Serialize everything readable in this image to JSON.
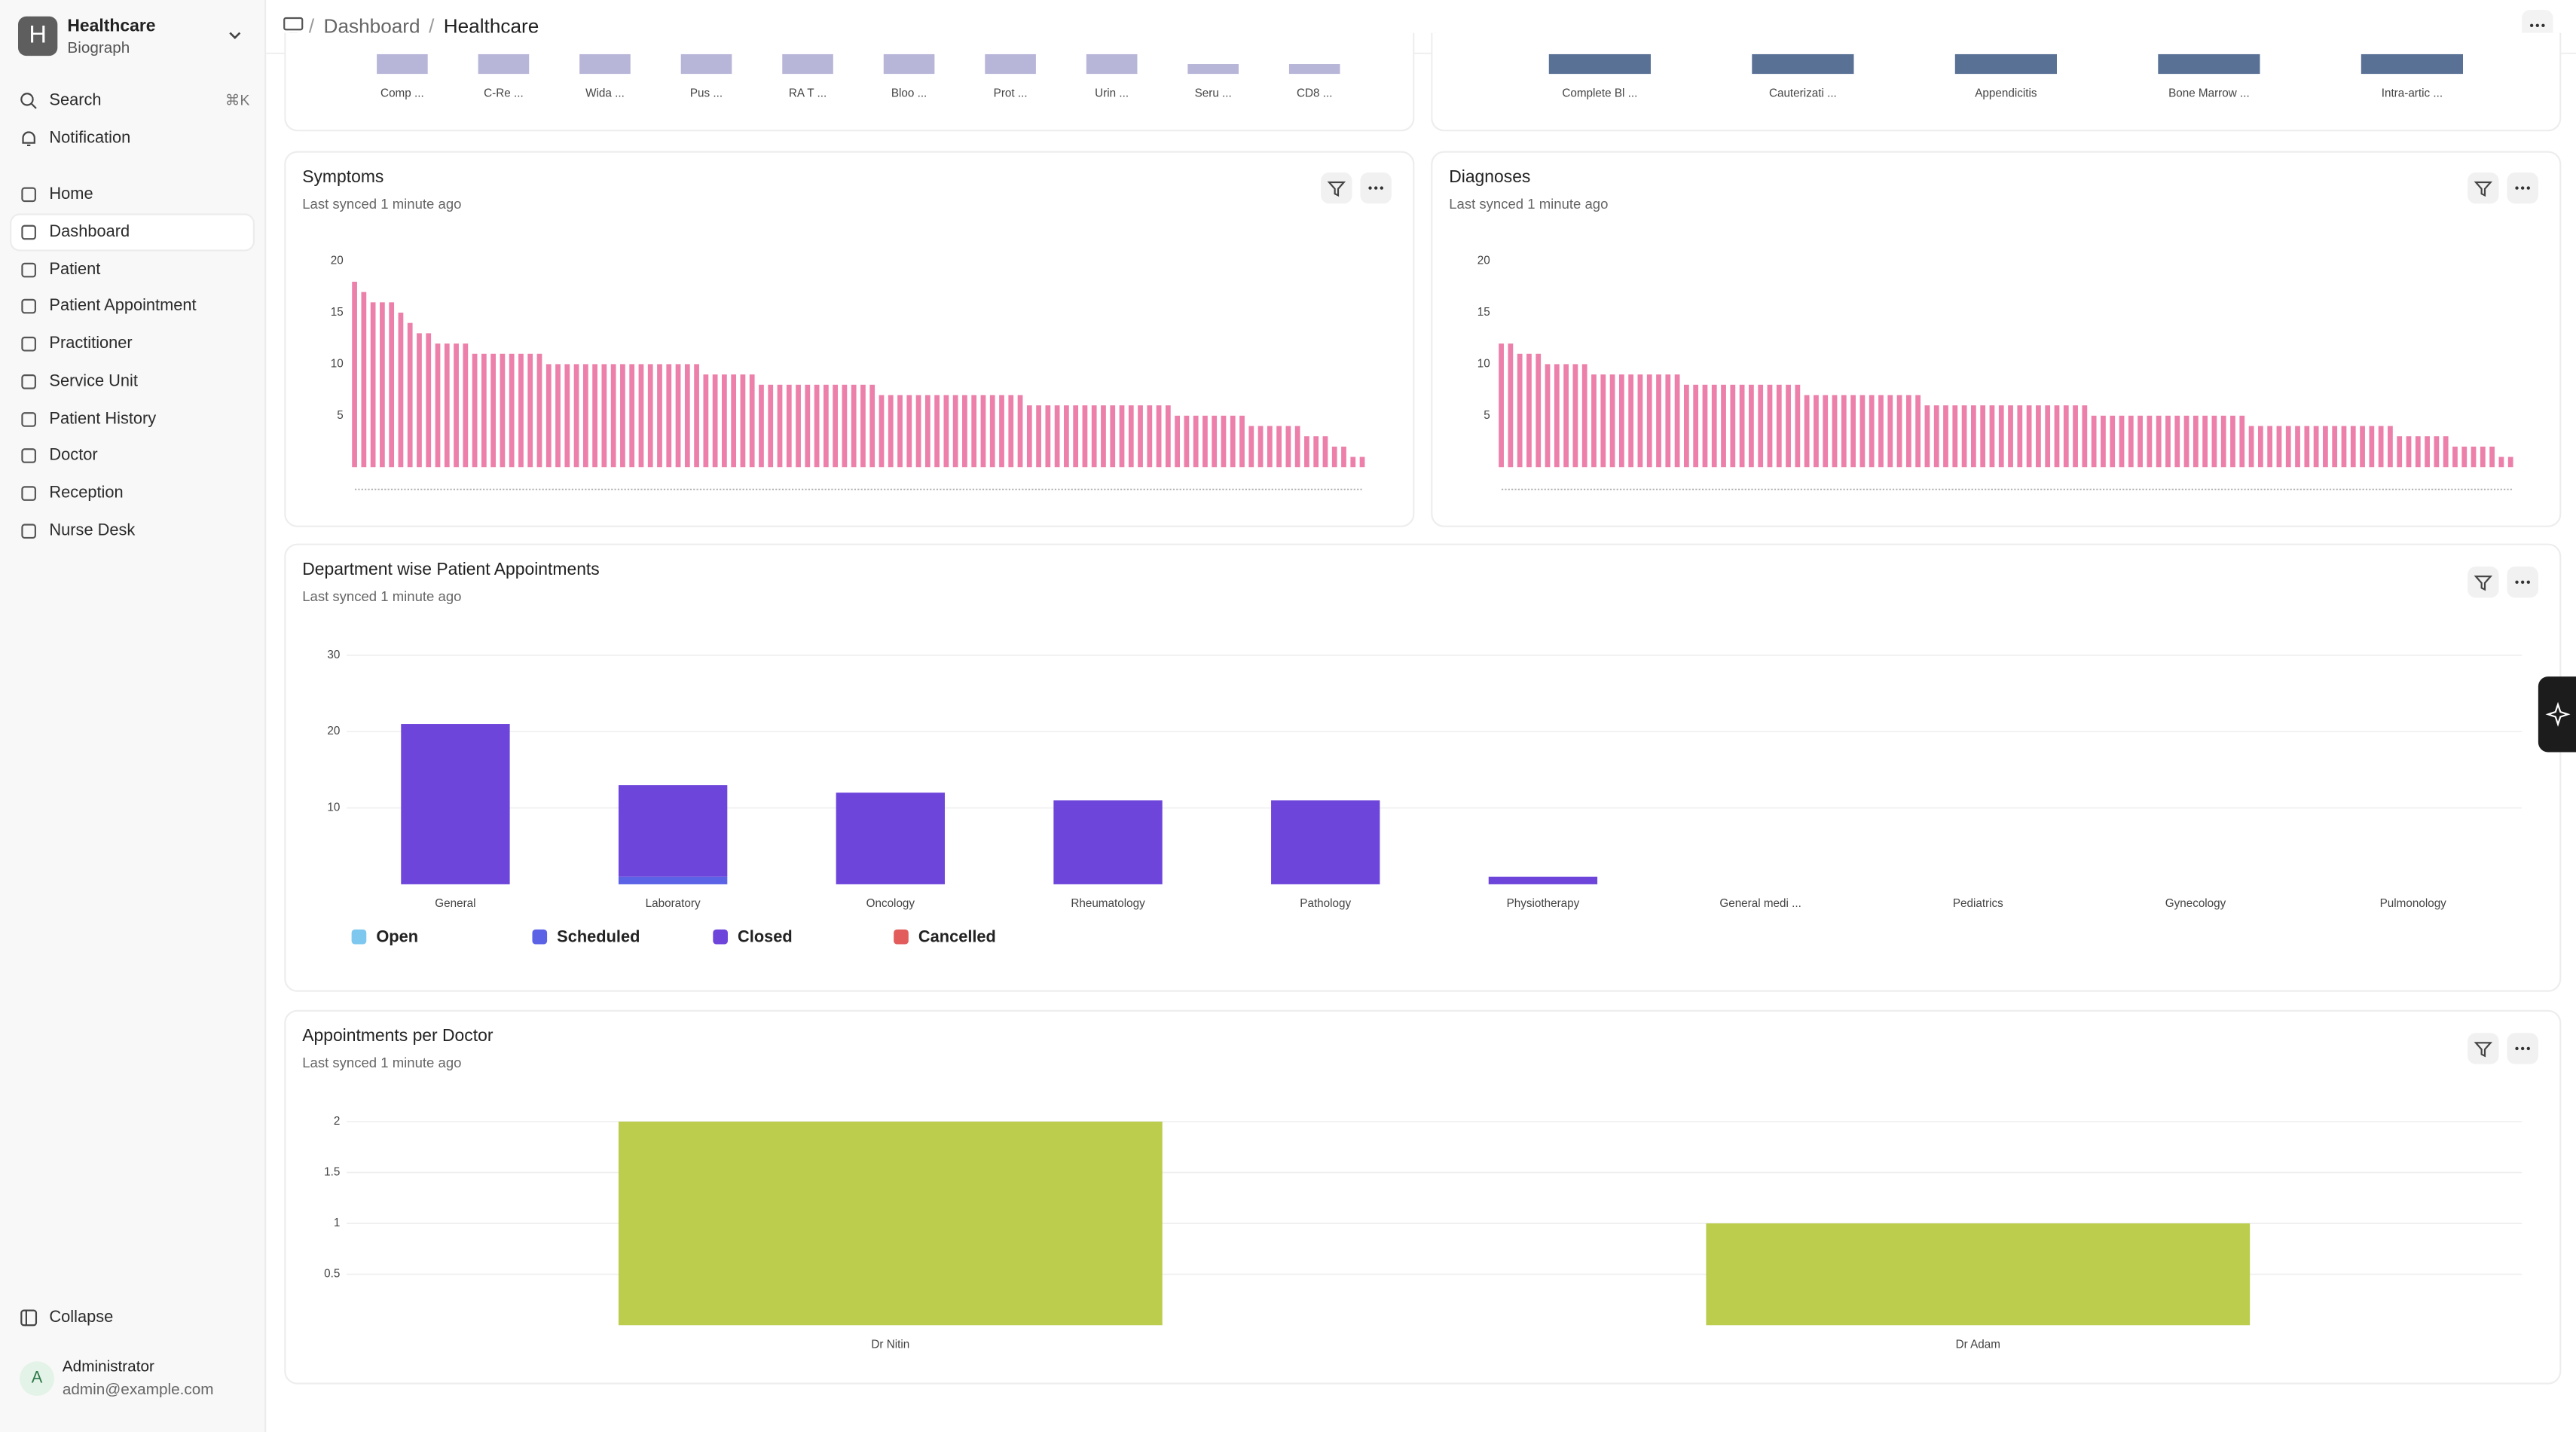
{
  "sidebar": {
    "workspace": {
      "initial": "H",
      "name": "Healthcare",
      "subtitle": "Biograph"
    },
    "search": "Search",
    "shortcut": "⌘K",
    "notification": "Notification",
    "nav": [
      "Home",
      "Dashboard",
      "Patient",
      "Patient Appointment",
      "Practitioner",
      "Service Unit",
      "Patient History",
      "Doctor",
      "Reception",
      "Nurse Desk"
    ],
    "collapse": "Collapse",
    "user": {
      "initial": "A",
      "name": "Administrator",
      "email": "admin@example.com"
    }
  },
  "breadcrumb": [
    "Dashboard",
    "Healthcare"
  ],
  "chart_data": [
    {
      "type": "bar",
      "color": "#b8b6d8",
      "categories": [
        "Comp ...",
        "C-Re ...",
        "Wida ...",
        "Pus ...",
        "RA T ...",
        "Bloo ...",
        "Prot ...",
        "Urin ...",
        "Seru ...",
        "CD8 ..."
      ]
    },
    {
      "type": "bar",
      "color": "#5a7196",
      "categories": [
        "Complete Bl ...",
        "Cauterizati ...",
        "Appendicitis",
        "Bone Marrow ...",
        "Intra-artic ..."
      ]
    },
    {
      "type": "bar",
      "title": "Symptoms",
      "subtitle": "Last synced 1 minute ago",
      "color": "#ec80aa",
      "ylim": [
        0,
        20
      ],
      "yticks": [
        5,
        10,
        15,
        20
      ],
      "grid": false,
      "values": [
        18,
        17,
        16,
        16,
        16,
        15,
        14,
        13,
        13,
        12,
        12,
        12,
        12,
        11,
        11,
        11,
        11,
        11,
        11,
        11,
        11,
        10,
        10,
        10,
        10,
        10,
        10,
        10,
        10,
        10,
        10,
        10,
        10,
        10,
        10,
        10,
        10,
        10,
        9,
        9,
        9,
        9,
        9,
        9,
        8,
        8,
        8,
        8,
        8,
        8,
        8,
        8,
        8,
        8,
        8,
        8,
        8,
        7,
        7,
        7,
        7,
        7,
        7,
        7,
        7,
        7,
        7,
        7,
        7,
        7,
        7,
        7,
        7,
        6,
        6,
        6,
        6,
        6,
        6,
        6,
        6,
        6,
        6,
        6,
        6,
        6,
        6,
        6,
        6,
        5,
        5,
        5,
        5,
        5,
        5,
        5,
        5,
        4,
        4,
        4,
        4,
        4,
        4,
        3,
        3,
        3,
        2,
        2,
        1,
        1
      ]
    },
    {
      "type": "bar",
      "title": "Diagnoses",
      "subtitle": "Last synced 1 minute ago",
      "color": "#ec80aa",
      "ylim": [
        0,
        20
      ],
      "yticks": [
        5,
        10,
        15,
        20
      ],
      "grid": false,
      "values": [
        12,
        12,
        11,
        11,
        11,
        10,
        10,
        10,
        10,
        10,
        9,
        9,
        9,
        9,
        9,
        9,
        9,
        9,
        9,
        9,
        8,
        8,
        8,
        8,
        8,
        8,
        8,
        8,
        8,
        8,
        8,
        8,
        8,
        7,
        7,
        7,
        7,
        7,
        7,
        7,
        7,
        7,
        7,
        7,
        7,
        7,
        6,
        6,
        6,
        6,
        6,
        6,
        6,
        6,
        6,
        6,
        6,
        6,
        6,
        6,
        6,
        6,
        6,
        6,
        5,
        5,
        5,
        5,
        5,
        5,
        5,
        5,
        5,
        5,
        5,
        5,
        5,
        5,
        5,
        5,
        5,
        4,
        4,
        4,
        4,
        4,
        4,
        4,
        4,
        4,
        4,
        4,
        4,
        4,
        4,
        4,
        4,
        3,
        3,
        3,
        3,
        3,
        3,
        2,
        2,
        2,
        2,
        2,
        1,
        1
      ]
    },
    {
      "type": "stacked-bar",
      "title": "Department wise Patient Appointments",
      "subtitle": "Last synced 1 minute ago",
      "ylim": [
        0,
        30
      ],
      "yticks": [
        10,
        20,
        30
      ],
      "grid": true,
      "legend": "bottom-left",
      "categories": [
        "General",
        "Laboratory",
        "Oncology",
        "Rheumatology",
        "Pathology",
        "Physiotherapy",
        "General medi ...",
        "Pediatrics",
        "Gynecology",
        "Pulmonology"
      ],
      "series": [
        {
          "name": "Open",
          "color": "#7ec8ef",
          "values": [
            0,
            0,
            0,
            0,
            0,
            0,
            0,
            0,
            0,
            0
          ]
        },
        {
          "name": "Scheduled",
          "color": "#5b62e6",
          "values": [
            0,
            1,
            0,
            0,
            0,
            0,
            0,
            0,
            0,
            0
          ]
        },
        {
          "name": "Closed",
          "color": "#6e45db",
          "values": [
            21,
            12,
            12,
            11,
            11,
            1,
            0,
            0,
            0,
            0
          ]
        },
        {
          "name": "Cancelled",
          "color": "#e25c5c",
          "values": [
            0,
            0,
            0,
            0,
            0,
            0,
            0,
            0,
            0,
            0
          ]
        }
      ]
    },
    {
      "type": "bar",
      "title": "Appointments per Doctor",
      "subtitle": "Last synced 1 minute ago",
      "color": "#bccc4c",
      "ylim": [
        0,
        2
      ],
      "yticks": [
        0.5,
        1,
        1.5,
        2
      ],
      "grid": true,
      "categories": [
        "Dr Nitin",
        "Dr Adam"
      ],
      "values": [
        2,
        1
      ]
    }
  ]
}
